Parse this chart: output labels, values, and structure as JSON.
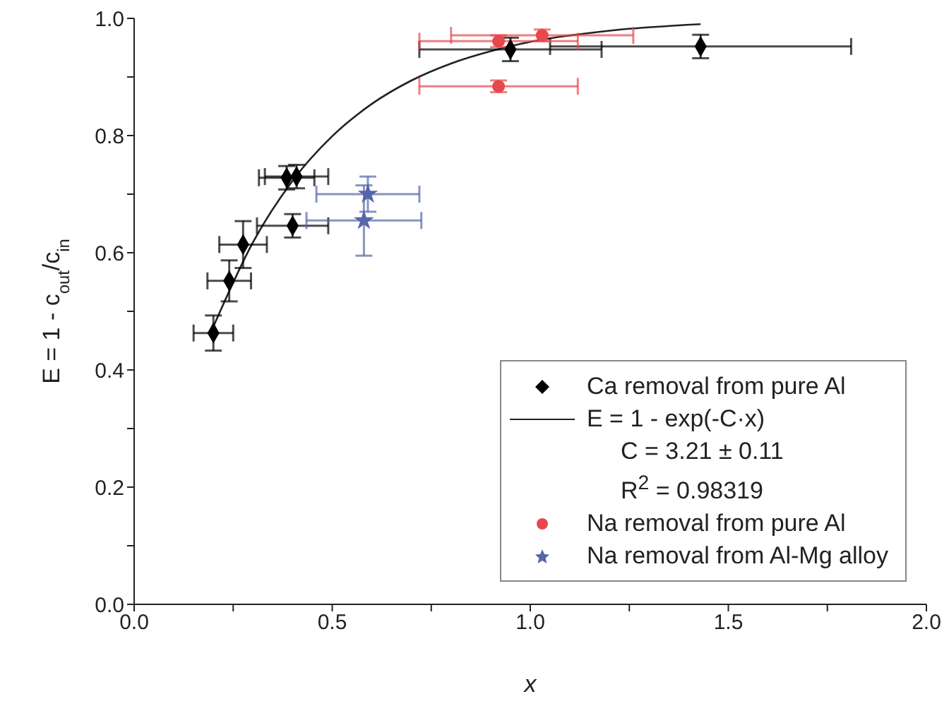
{
  "chart_data": {
    "type": "scatter",
    "xlabel": "x",
    "ylabel": "E = 1 - c$_{out}$/c$_{in}$",
    "xlim": [
      0,
      2
    ],
    "xticks": [
      {
        "value": 0,
        "label": "0.0"
      },
      {
        "value": 0.25,
        "label": null
      },
      {
        "value": 0.5,
        "label": "0.5"
      },
      {
        "value": 0.75,
        "label": null
      },
      {
        "value": 1,
        "label": "1.0"
      },
      {
        "value": 1.25,
        "label": null
      },
      {
        "value": 1.5,
        "label": "1.5"
      },
      {
        "value": 1.75,
        "label": null
      },
      {
        "value": 2,
        "label": "2.0"
      }
    ],
    "ylim": [
      0,
      1
    ],
    "yticks": [
      {
        "value": 0,
        "label": "0.0"
      },
      {
        "value": 0.1,
        "label": null
      },
      {
        "value": 0.2,
        "label": "0.2"
      },
      {
        "value": 0.3,
        "label": null
      },
      {
        "value": 0.4,
        "label": "0.4"
      },
      {
        "value": 0.5,
        "label": null
      },
      {
        "value": 0.6,
        "label": "0.6"
      },
      {
        "value": 0.7,
        "label": null
      },
      {
        "value": 0.8,
        "label": "0.8"
      },
      {
        "value": 0.9,
        "label": null
      },
      {
        "value": 1,
        "label": "1.0"
      }
    ],
    "grid": false,
    "legend": "bottom right",
    "annotations": [
      "C = 3.21 ± 0.11",
      "R$^{2}$ = 0.98319"
    ],
    "series": [
      {
        "name": "Ca removal from pure Al",
        "marker": "diamond",
        "color": "#000000",
        "x": [
          0.2,
          0.24,
          0.275,
          0.385,
          0.41,
          0.4,
          0.95,
          1.43
        ],
        "values": [
          0.463,
          0.552,
          0.614,
          0.728,
          0.73,
          0.646,
          0.947,
          0.952
        ],
        "errors": [
          0.03,
          0.035,
          0.04,
          0.02,
          0.02,
          0.02,
          0.02,
          0.02
        ],
        "xerrors": [
          0.05,
          0.055,
          0.06,
          0.07,
          0.08,
          0.09,
          0.23,
          0.38
        ]
      },
      {
        "name": "E = 1 - exp(-C·x)",
        "type": "line",
        "color": "#222222",
        "x": [
          0.2,
          0.3,
          0.4,
          0.5,
          0.6,
          0.7,
          0.8,
          0.9,
          1.0,
          1.2,
          1.43
        ],
        "values": [
          0.474,
          0.618,
          0.723,
          0.799,
          0.854,
          0.894,
          0.923,
          0.944,
          0.96,
          0.979,
          0.99
        ]
      },
      {
        "name": "Na removal from pure Al",
        "marker": "circle",
        "color": "#e8474c",
        "x": [
          0.92,
          1.03,
          0.92
        ],
        "values": [
          0.961,
          0.971,
          0.884
        ],
        "errors": [
          0.01,
          0.01,
          0.01
        ],
        "xerrors": [
          0.2,
          0.23,
          0.2
        ]
      },
      {
        "name": "Na removal from Al-Mg alloy",
        "marker": "star",
        "color": "#5566aa",
        "x": [
          0.58,
          0.59
        ],
        "values": [
          0.655,
          0.7
        ],
        "errors": [
          0.06,
          0.03
        ],
        "xerrors": [
          0.145,
          0.13
        ]
      }
    ]
  }
}
